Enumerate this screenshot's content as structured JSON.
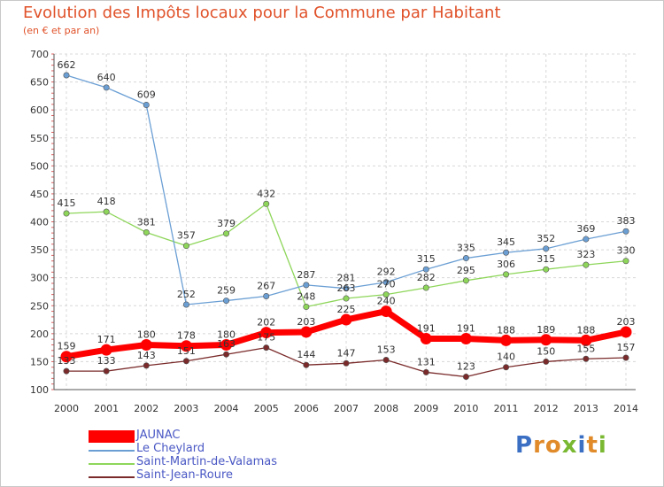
{
  "title": "Evolution des Impôts locaux pour la Commune par Habitant",
  "subtitle": "(en € et par an)",
  "brand": {
    "text": "Proxiti",
    "letter_colors": [
      "#3a6fc4",
      "#e08a2a",
      "#e08a2a",
      "#7ab832",
      "#3a6fc4",
      "#e08a2a",
      "#7ab832"
    ]
  },
  "chart_data": {
    "type": "line",
    "title": "Evolution des Impôts locaux pour la Commune par Habitant",
    "subtitle": "(en € et par an)",
    "xlabel": "",
    "ylabel": "",
    "ylim": [
      100,
      700
    ],
    "yticks": [
      100,
      150,
      200,
      250,
      300,
      350,
      400,
      450,
      500,
      550,
      600,
      650,
      700
    ],
    "x": [
      "2000",
      "2001",
      "2002",
      "2003",
      "2004",
      "2005",
      "2006",
      "2007",
      "2008",
      "2009",
      "2010",
      "2011",
      "2012",
      "2013",
      "2014"
    ],
    "grid": true,
    "legend_position": "bottom-left",
    "series": [
      {
        "name": "JAUNAC",
        "color": "#ff0000",
        "values": [
          159,
          171,
          180,
          178,
          180,
          202,
          203,
          225,
          240,
          191,
          191,
          188,
          189,
          188,
          203
        ]
      },
      {
        "name": "Le Cheylard",
        "color": "#6b9fd4",
        "values": [
          662,
          640,
          609,
          252,
          259,
          267,
          287,
          281,
          292,
          315,
          335,
          345,
          352,
          369,
          383
        ]
      },
      {
        "name": "Saint-Martin-de-Valamas",
        "color": "#8ed65a",
        "values": [
          415,
          418,
          381,
          357,
          379,
          432,
          248,
          263,
          270,
          282,
          295,
          306,
          315,
          323,
          330
        ]
      },
      {
        "name": "Saint-Jean-Roure",
        "color": "#7a2a2a",
        "values": [
          133,
          133,
          143,
          151,
          163,
          175,
          144,
          147,
          153,
          131,
          123,
          140,
          150,
          155,
          157
        ]
      }
    ]
  }
}
